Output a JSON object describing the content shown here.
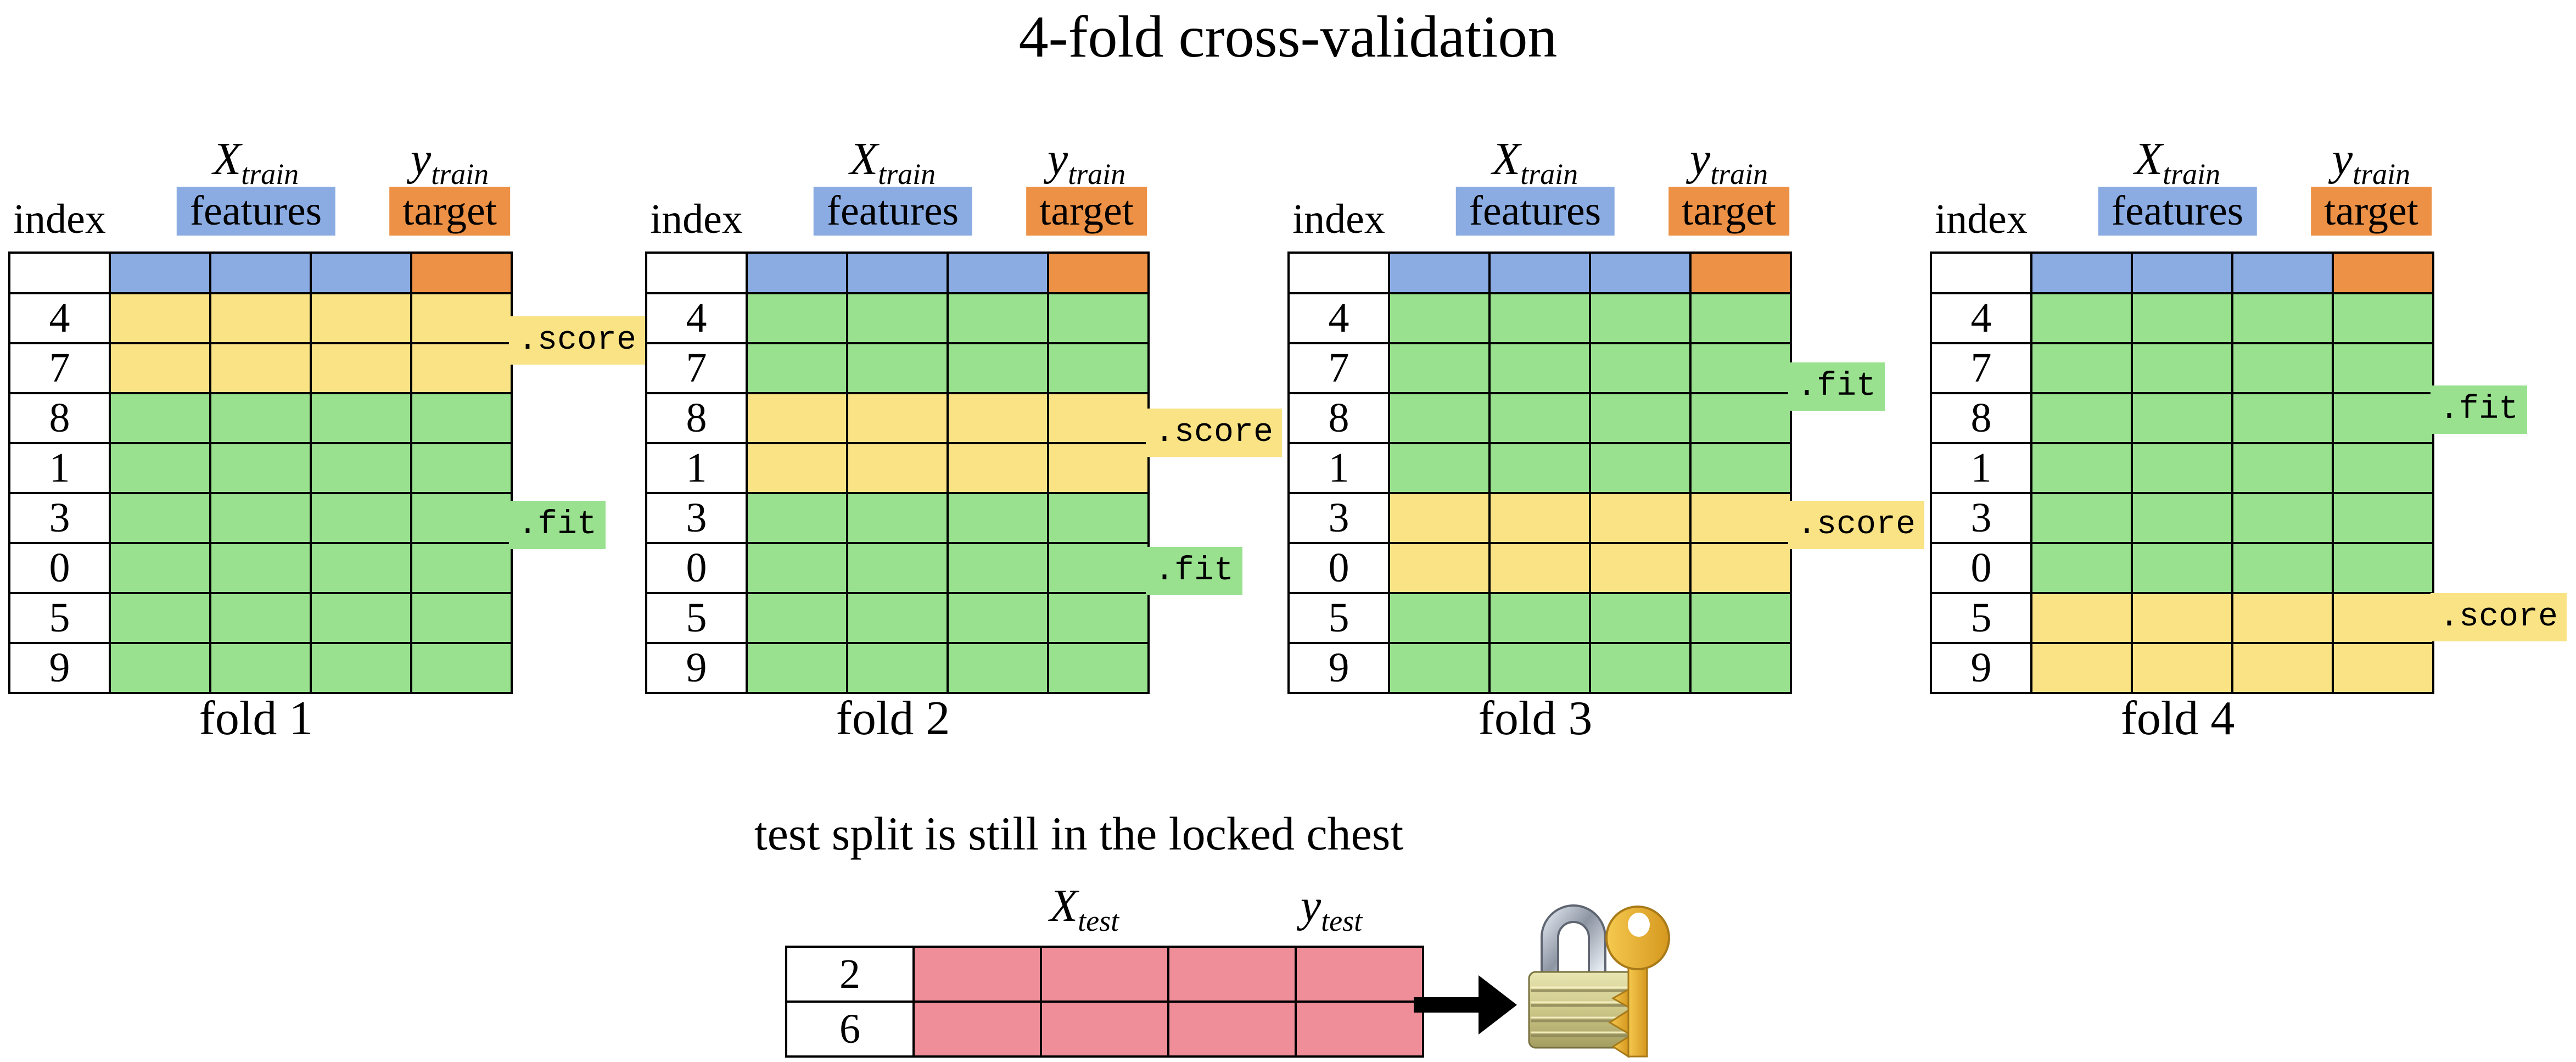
{
  "title": "4-fold cross-validation",
  "table_header": {
    "index_label": "index",
    "x_symbol": "X",
    "x_subscript": "train",
    "features_label": "features",
    "y_symbol": "y",
    "y_subscript": "train",
    "target_label": "target"
  },
  "row_indices": [
    "4",
    "7",
    "8",
    "1",
    "3",
    "0",
    "5",
    "9"
  ],
  "method_labels": {
    "fit": ".fit",
    "score": ".score"
  },
  "folds": [
    {
      "name": "fold 1",
      "score_rows": [
        0,
        1
      ]
    },
    {
      "name": "fold 2",
      "score_rows": [
        2,
        3
      ]
    },
    {
      "name": "fold 3",
      "score_rows": [
        4,
        5
      ]
    },
    {
      "name": "fold 4",
      "score_rows": [
        6,
        7
      ]
    }
  ],
  "test_section": {
    "caption": "test split is still in the locked chest",
    "x_symbol": "X",
    "x_subscript": "test",
    "y_symbol": "y",
    "y_subscript": "test",
    "row_indices": [
      "2",
      "6"
    ]
  },
  "colors": {
    "features_blue": "#8BACE3",
    "target_orange": "#EC9145",
    "score_yellow": "#F9E385",
    "fit_green": "#99E18F",
    "test_pink": "#EF8E98"
  },
  "icons": {
    "arrow": "right-arrow-icon",
    "lock": "lock-and-key-icon"
  }
}
